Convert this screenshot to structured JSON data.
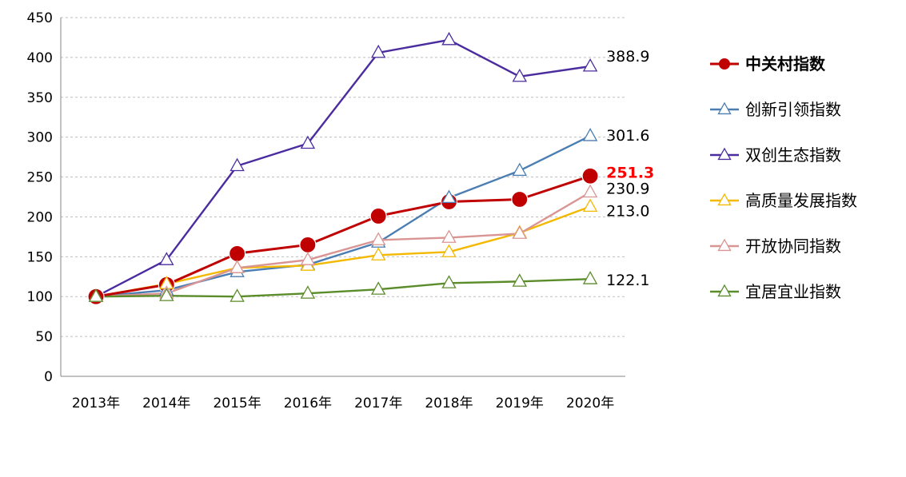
{
  "chart_data": {
    "type": "line",
    "categories": [
      "2013年",
      "2014年",
      "2015年",
      "2016年",
      "2017年",
      "2018年",
      "2019年",
      "2020年"
    ],
    "ylim": [
      0,
      450
    ],
    "yticks": [
      "0",
      "50",
      "100",
      "150",
      "200",
      "250",
      "300",
      "350",
      "400",
      "450"
    ],
    "grid": true,
    "legend_position": "right",
    "series": [
      {
        "name": "中关村指数",
        "color": "#c00000",
        "marker": "circle",
        "highlight": true,
        "values": [
          100,
          115,
          154,
          165,
          201,
          219,
          222,
          251.3
        ],
        "end_label": "251.3"
      },
      {
        "name": "创新引领指数",
        "color": "#4a7eb3",
        "marker": "triangle",
        "values": [
          100,
          108,
          131,
          140,
          168,
          224,
          258,
          301.6
        ],
        "end_label": "301.6"
      },
      {
        "name": "双创生态指数",
        "color": "#4b2c9f",
        "marker": "triangle",
        "values": [
          100,
          146,
          264,
          292,
          406,
          422,
          376,
          388.9
        ],
        "end_label": "388.9"
      },
      {
        "name": "高质量发展指数",
        "color": "#f3b800",
        "marker": "triangle",
        "values": [
          100,
          116,
          136,
          139,
          152,
          156,
          180,
          213.0
        ],
        "end_label": "213.0"
      },
      {
        "name": "开放协同指数",
        "color": "#d99594",
        "marker": "triangle",
        "values": [
          100,
          104,
          136,
          146,
          171,
          174,
          179,
          230.9
        ],
        "end_label": "230.9"
      },
      {
        "name": "宜居宜业指数",
        "color": "#5b8c2a",
        "marker": "triangle",
        "values": [
          100,
          101,
          100,
          104,
          109,
          117,
          119,
          122.1
        ],
        "end_label": "122.1"
      }
    ]
  }
}
